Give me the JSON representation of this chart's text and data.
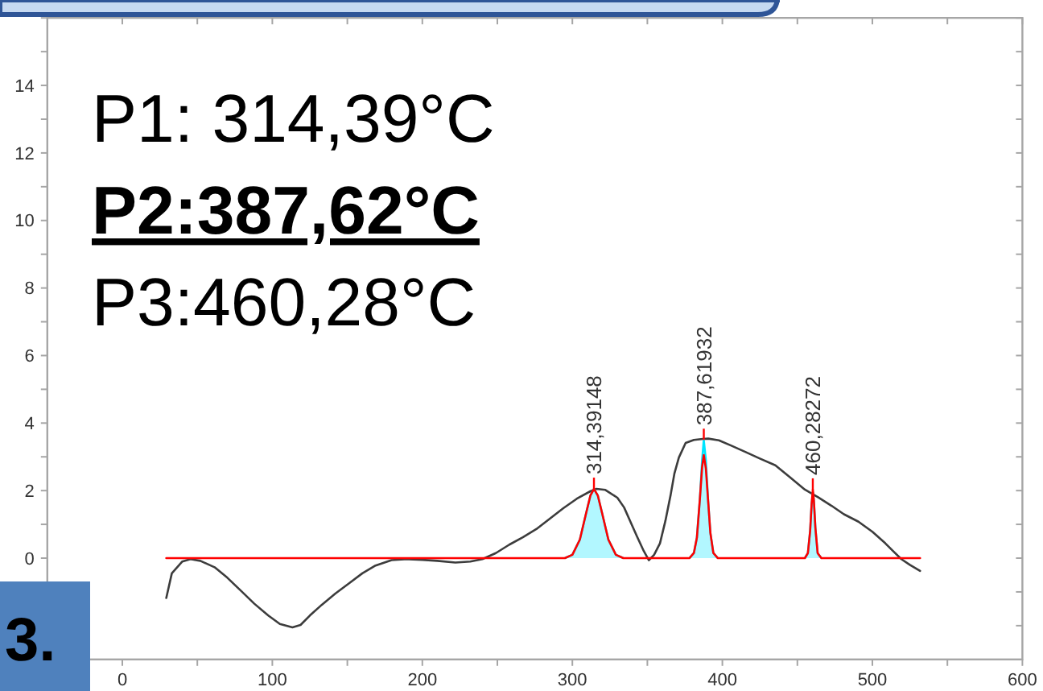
{
  "chart_data": {
    "type": "line",
    "xlim": [
      -50,
      600
    ],
    "xticks": [
      0,
      {
        "value": 50,
        "label": null
      },
      100,
      {
        "value": 150,
        "label": null
      },
      200,
      {
        "value": 250,
        "label": null
      },
      300,
      {
        "value": 350,
        "label": null
      },
      400,
      {
        "value": 450,
        "label": null
      },
      500,
      {
        "value": 550,
        "label": null
      },
      600
    ],
    "ylim": [
      -3,
      16
    ],
    "yticks": [
      {
        "value": -2,
        "label": null
      },
      {
        "value": -1,
        "label": null
      },
      0,
      {
        "value": 1,
        "label": null
      },
      2,
      {
        "value": 3,
        "label": null
      },
      4,
      {
        "value": 5,
        "label": null
      },
      6,
      {
        "value": 7,
        "label": null
      },
      8,
      {
        "value": 9,
        "label": null
      },
      10,
      {
        "value": 11,
        "label": null
      },
      12,
      {
        "value": 13,
        "label": null
      },
      14,
      {
        "value": 15,
        "label": null
      },
      {
        "value": 16,
        "label": null
      }
    ],
    "series": [
      {
        "color": "#3c3c3c",
        "x": [
          29.3,
          33,
          40,
          45.4,
          52,
          61.5,
          70,
          79.4,
          88,
          97.3,
          105,
          113.4,
          118.8,
          125,
          133,
          142,
          151,
          160,
          168.8,
          179.5,
          190,
          200,
          210,
          222,
          232,
          240,
          249,
          258,
          267,
          276,
          285,
          294,
          303,
          312,
          316,
          322,
          330,
          334.5,
          338.7,
          343,
          347.6,
          351,
          354.5,
          358.4,
          362,
          365.5,
          368,
          371,
          375.5,
          381,
          387,
          390.6,
          397.7,
          406,
          415.6,
          425,
          435.3,
          445,
          455,
          464,
          472.8,
          481,
          490.7,
          500,
          508.6,
          514,
          519.3,
          525,
          531.8
        ],
        "values": [
          -1.18,
          -0.45,
          -0.1,
          -0.03,
          -0.08,
          -0.27,
          -0.58,
          -0.98,
          -1.35,
          -1.7,
          -1.95,
          -2.05,
          -1.98,
          -1.7,
          -1.38,
          -1.05,
          -0.75,
          -0.45,
          -0.22,
          -0.06,
          -0.03,
          -0.05,
          -0.08,
          -0.13,
          -0.1,
          -0.03,
          0.15,
          0.4,
          0.62,
          0.86,
          1.17,
          1.48,
          1.76,
          1.98,
          2.05,
          2.02,
          1.79,
          1.5,
          1.08,
          0.65,
          0.21,
          -0.06,
          0.1,
          0.44,
          1.1,
          1.87,
          2.5,
          2.98,
          3.41,
          3.5,
          3.53,
          3.54,
          3.49,
          3.33,
          3.14,
          2.95,
          2.75,
          2.4,
          2.03,
          1.8,
          1.55,
          1.3,
          1.08,
          0.78,
          0.44,
          0.2,
          -0.03,
          -0.2,
          -0.38
        ]
      },
      {
        "type": "area",
        "color": "#00e5ff",
        "x": [
          295,
          300,
          305,
          309,
          312,
          314.4,
          317,
          320,
          324,
          329,
          334,
          350,
          378,
          381,
          383,
          385,
          386.5,
          387.6,
          389,
          390.5,
          392,
          394,
          397,
          420,
          455,
          457,
          458.5,
          459.5,
          460.3,
          461,
          462,
          463.5,
          466
        ],
        "values": [
          0,
          0.1,
          0.55,
          1.3,
          1.85,
          2.05,
          1.85,
          1.3,
          0.55,
          0.1,
          0,
          null,
          0,
          0.15,
          0.6,
          1.75,
          2.9,
          3.5,
          2.9,
          1.7,
          0.75,
          0.15,
          0,
          null,
          0,
          0.15,
          0.8,
          1.6,
          1.95,
          1.7,
          0.9,
          0.15,
          0
        ]
      },
      {
        "color": "#ff0000",
        "x": [
          29.3,
          295,
          300,
          305,
          309,
          312,
          314.4,
          317,
          320,
          324,
          329,
          334,
          378,
          381,
          383,
          385,
          386.5,
          387.6,
          389,
          390.5,
          392,
          394,
          397,
          455,
          457,
          458.5,
          459.5,
          460.3,
          461,
          462,
          463.5,
          466,
          531.8
        ],
        "values": [
          0,
          0,
          0.1,
          0.55,
          1.3,
          1.85,
          2.05,
          1.85,
          1.3,
          0.55,
          0.1,
          0,
          0,
          0.15,
          0.6,
          1.75,
          2.7,
          3.05,
          2.65,
          1.7,
          0.75,
          0.15,
          0,
          0,
          0.15,
          0.8,
          1.6,
          2.03,
          1.7,
          0.9,
          0.15,
          0,
          0
        ]
      }
    ],
    "annotations": [
      "P1: 314,39°C",
      "P2:387,62°C",
      "P3:460,28°C",
      {
        "text": "314,39148",
        "x": 314.39148,
        "y": 2.05
      },
      {
        "text": "387,61932",
        "x": 387.61932,
        "y": 3.5
      },
      {
        "text": "460,28272",
        "x": 460.28272,
        "y": 2.03
      },
      "3."
    ]
  }
}
